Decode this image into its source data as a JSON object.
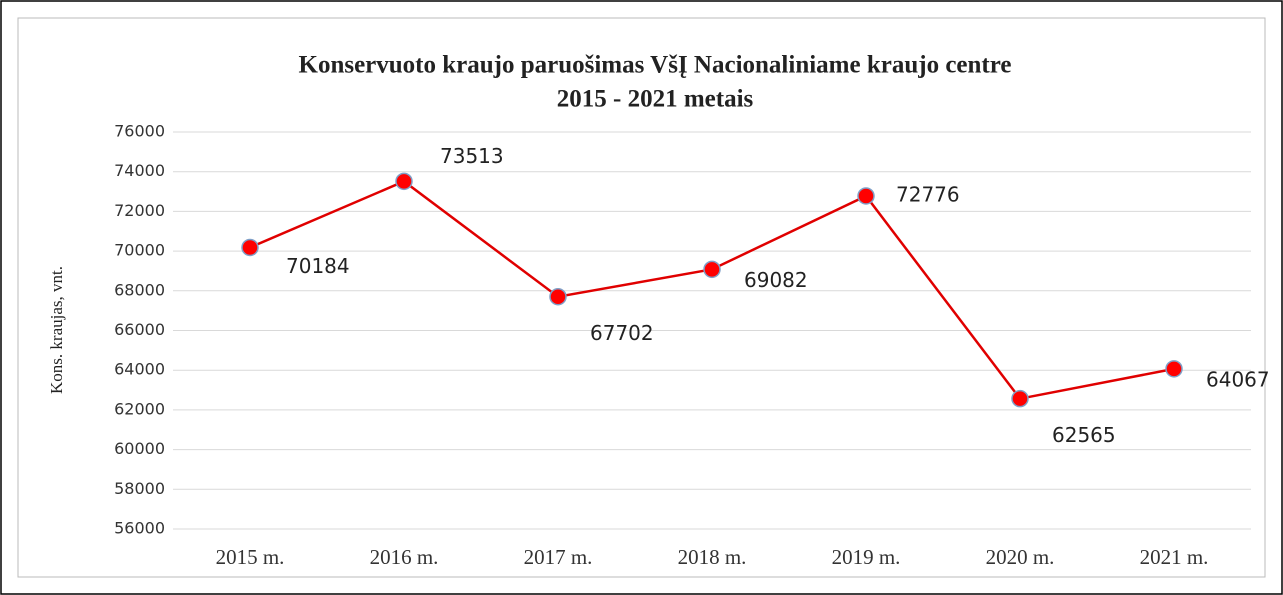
{
  "chart_data": {
    "type": "line",
    "title": [
      "Konservuoto kraujo paruošimas VšĮ Nacionaliniame kraujo centre",
      "2015 - 2021 metais"
    ],
    "y_label": "Kons. kraujas, vnt.",
    "categories": [
      "2015 m.",
      "2016 m.",
      "2017 m.",
      "2018 m.",
      "2019 m.",
      "2020 m.",
      "2021 m."
    ],
    "series": [
      {
        "name": "Kons. kraujas",
        "color": "#e00000",
        "marker_color": "#ff0000",
        "marker_edge": "#7f9fc7",
        "values": [
          70184,
          73513,
          67702,
          69082,
          72776,
          62565,
          64067
        ]
      }
    ],
    "ylim": [
      56000,
      76000
    ],
    "yticks": [
      56000,
      58000,
      60000,
      62000,
      64000,
      66000,
      68000,
      70000,
      72000,
      74000,
      76000
    ],
    "grid": true
  }
}
